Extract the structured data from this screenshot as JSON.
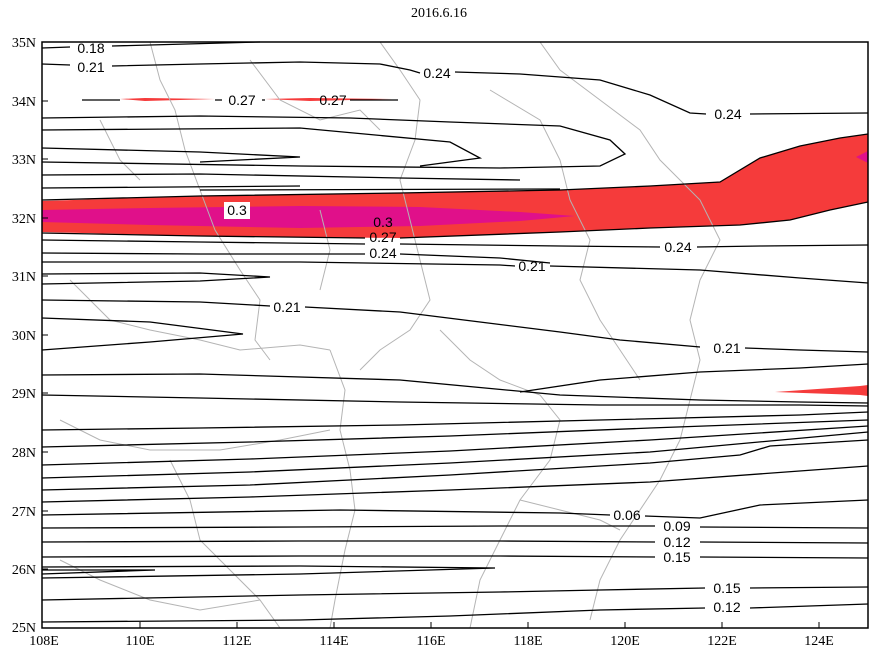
{
  "title": "2016.6.16",
  "colors": {
    "fill_027": "#f53b3b",
    "fill_030": "#e0108a",
    "contour": "#000000",
    "boundary": "#b4b4b4"
  },
  "axes": {
    "lat_labels": [
      "35N",
      "34N",
      "33N",
      "32N",
      "31N",
      "30N",
      "29N",
      "28N",
      "27N",
      "26N",
      "25N"
    ],
    "lon_labels": [
      "108E",
      "110E",
      "112E",
      "114E",
      "116E",
      "118E",
      "120E",
      "122E",
      "124E"
    ]
  },
  "contour_labels": {
    "l018": "0.18",
    "l021a": "0.21",
    "l024a": "0.24",
    "l027a": "0.27",
    "l027b": "0.27",
    "l024b": "0.24",
    "l030a": "0.3",
    "l030b": "0.3",
    "l027c": "0.27",
    "l024c": "0.24",
    "l024d": "0.24",
    "l021b": "0.21",
    "l021c": "0.21",
    "l021d": "0.21",
    "l006": "0.06",
    "l009": "0.09",
    "l012a": "0.12",
    "l015a": "0.15",
    "l015b": "0.15",
    "l012b": "0.12"
  }
}
